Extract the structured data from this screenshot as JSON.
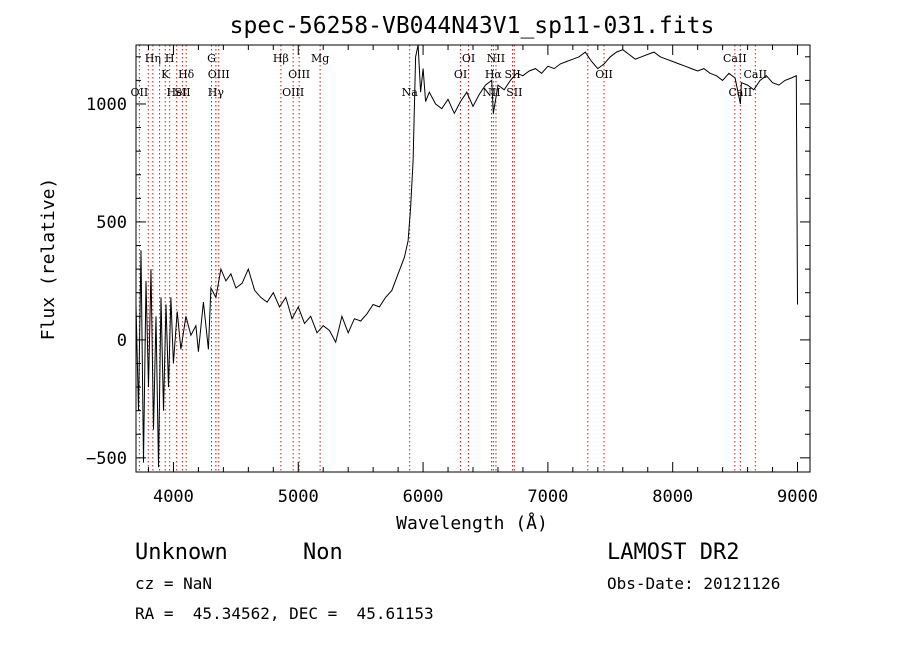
{
  "chart_data": {
    "type": "line",
    "title": "spec-56258-VB044N43V1_sp11-031.fits",
    "xlabel": "Wavelength (Å)",
    "ylabel": "Flux (relative)",
    "xlim": [
      3700,
      9100
    ],
    "ylim": [
      -560,
      1250
    ],
    "x_ticks": [
      {
        "value": 4000,
        "label": "4000"
      },
      {
        "value": 5000,
        "label": "5000"
      },
      {
        "value": 6000,
        "label": "6000"
      },
      {
        "value": 7000,
        "label": "7000"
      },
      {
        "value": 8000,
        "label": "8000"
      },
      {
        "value": 9000,
        "label": "9000"
      }
    ],
    "y_ticks": [
      {
        "value": -500,
        "label": "−500"
      },
      {
        "value": 0,
        "label": "0"
      },
      {
        "value": 500,
        "label": "500"
      },
      {
        "value": 1000,
        "label": "1000"
      }
    ],
    "grid": false,
    "series": [
      {
        "color": "#000000",
        "x": [
          3700,
          3720,
          3740,
          3760,
          3780,
          3800,
          3820,
          3840,
          3860,
          3880,
          3900,
          3920,
          3940,
          3960,
          3980,
          4000,
          4030,
          4060,
          4100,
          4140,
          4180,
          4200,
          4240,
          4280,
          4300,
          4340,
          4380,
          4420,
          4460,
          4500,
          4550,
          4600,
          4650,
          4700,
          4750,
          4800,
          4850,
          4900,
          4950,
          5000,
          5050,
          5100,
          5150,
          5200,
          5250,
          5300,
          5350,
          5400,
          5450,
          5500,
          5550,
          5600,
          5650,
          5700,
          5750,
          5800,
          5850,
          5880,
          5900,
          5920,
          5940,
          5960,
          5980,
          6000,
          6020,
          6050,
          6100,
          6150,
          6200,
          6250,
          6300,
          6350,
          6400,
          6450,
          6500,
          6550,
          6563,
          6600,
          6650,
          6700,
          6750,
          6800,
          6850,
          6900,
          6950,
          7000,
          7050,
          7100,
          7150,
          7200,
          7250,
          7300,
          7350,
          7400,
          7450,
          7500,
          7550,
          7600,
          7650,
          7700,
          7750,
          7800,
          7850,
          7900,
          7950,
          8000,
          8050,
          8100,
          8150,
          8200,
          8250,
          8300,
          8350,
          8400,
          8450,
          8500,
          8542,
          8550,
          8600,
          8650,
          8700,
          8750,
          8800,
          8850,
          8900,
          8950,
          8990,
          9000
        ],
        "y": [
          150,
          -300,
          380,
          -520,
          250,
          -200,
          300,
          -380,
          100,
          -540,
          180,
          -300,
          150,
          -200,
          180,
          -100,
          120,
          -40,
          100,
          20,
          60,
          -50,
          160,
          -40,
          220,
          180,
          300,
          250,
          280,
          220,
          240,
          300,
          210,
          180,
          160,
          200,
          140,
          180,
          90,
          140,
          70,
          100,
          30,
          60,
          40,
          -10,
          100,
          30,
          90,
          80,
          110,
          150,
          140,
          180,
          210,
          280,
          350,
          420,
          560,
          760,
          1200,
          1250,
          1050,
          1150,
          1010,
          1050,
          1000,
          980,
          1020,
          960,
          1010,
          1050,
          990,
          1040,
          1080,
          1100,
          960,
          1080,
          1060,
          1100,
          1130,
          1120,
          1140,
          1150,
          1130,
          1160,
          1150,
          1170,
          1180,
          1190,
          1200,
          1220,
          1180,
          1150,
          1170,
          1200,
          1220,
          1230,
          1210,
          1190,
          1200,
          1210,
          1220,
          1200,
          1190,
          1180,
          1170,
          1160,
          1150,
          1140,
          1150,
          1130,
          1120,
          1100,
          1130,
          1110,
          1000,
          1090,
          1080,
          1060,
          1100,
          1120,
          1090,
          1080,
          1100,
          1110,
          1120,
          150
        ]
      }
    ],
    "lines": [
      {
        "wave": 3727,
        "label": "OII",
        "row": 3
      },
      {
        "wave": 3798,
        "label": "",
        "row": 0
      },
      {
        "wave": 3835,
        "label": "Hη",
        "row": 1
      },
      {
        "wave": 3889,
        "label": "",
        "row": 0
      },
      {
        "wave": 3934,
        "label": "K",
        "row": 2
      },
      {
        "wave": 3970,
        "label": "H",
        "row": 1
      },
      {
        "wave": 4026,
        "label": "HeI",
        "row": 3
      },
      {
        "wave": 4072,
        "label": "SII",
        "row": 3
      },
      {
        "wave": 4102,
        "label": "Hδ",
        "row": 2
      },
      {
        "wave": 4305,
        "label": "G",
        "row": 1
      },
      {
        "wave": 4340,
        "label": "Hγ",
        "row": 3
      },
      {
        "wave": 4363,
        "label": "OIII",
        "row": 2
      },
      {
        "wave": 4861,
        "label": "Hβ",
        "row": 1
      },
      {
        "wave": 4959,
        "label": "OIII",
        "row": 3
      },
      {
        "wave": 5007,
        "label": "OIII",
        "row": 2
      },
      {
        "wave": 5175,
        "label": "Mg",
        "row": 1
      },
      {
        "wave": 5893,
        "label": "Na",
        "row": 3
      },
      {
        "wave": 6300,
        "label": "OI",
        "row": 2
      },
      {
        "wave": 6364,
        "label": "OI",
        "row": 1
      },
      {
        "wave": 6548,
        "label": "NII",
        "row": 3
      },
      {
        "wave": 6563,
        "label": "Hα",
        "row": 2
      },
      {
        "wave": 6584,
        "label": "NII",
        "row": 1
      },
      {
        "wave": 6717,
        "label": "SII",
        "row": 2
      },
      {
        "wave": 6731,
        "label": "SII",
        "row": 3
      },
      {
        "wave": 7320,
        "label": "",
        "row": 0
      },
      {
        "wave": 7450,
        "label": "OII",
        "row": 2
      },
      {
        "wave": 8498,
        "label": "CaII",
        "row": 1
      },
      {
        "wave": 8542,
        "label": "CaII",
        "row": 3
      },
      {
        "wave": 8662,
        "label": "CaII",
        "row": 2
      }
    ]
  },
  "info": {
    "class": "Unknown",
    "subclass": "Non",
    "survey": "LAMOST DR2",
    "cz": "cz = NaN",
    "obs_date": "Obs-Date: 20121126",
    "radec": "RA =  45.34562, DEC =  45.61153"
  }
}
